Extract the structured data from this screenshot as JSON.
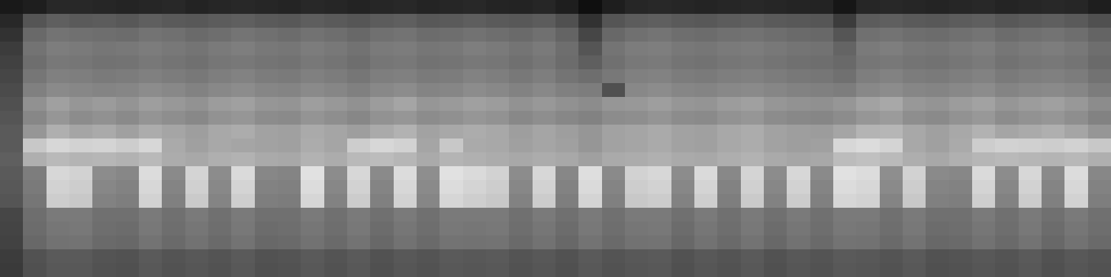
{
  "chart_data": {
    "type": "heatmap",
    "tick_labels": false,
    "xlim": [
      -0.5,
      47.5
    ],
    "ylim": [
      19.5,
      -0.5
    ],
    "zlim": [
      0,
      255
    ],
    "z": [
      [
        25,
        30,
        40,
        40,
        38,
        36,
        38,
        40,
        35,
        38,
        40,
        38,
        36,
        40,
        38,
        35,
        38,
        40,
        36,
        38,
        40,
        36,
        35,
        38,
        30,
        15,
        30,
        38,
        40,
        38,
        36,
        38,
        40,
        38,
        36,
        35,
        22,
        38,
        40,
        38,
        36,
        38,
        40,
        36,
        38,
        40,
        38,
        30
      ],
      [
        40,
        85,
        95,
        90,
        92,
        88,
        95,
        90,
        88,
        92,
        95,
        90,
        88,
        94,
        90,
        86,
        92,
        95,
        88,
        90,
        94,
        90,
        88,
        92,
        80,
        50,
        85,
        92,
        95,
        90,
        88,
        92,
        95,
        90,
        88,
        86,
        60,
        92,
        95,
        90,
        88,
        92,
        95,
        88,
        92,
        95,
        90,
        80
      ],
      [
        50,
        105,
        115,
        112,
        110,
        108,
        115,
        112,
        106,
        110,
        116,
        112,
        108,
        114,
        110,
        104,
        112,
        115,
        108,
        110,
        114,
        110,
        106,
        112,
        100,
        70,
        104,
        112,
        116,
        110,
        108,
        112,
        114,
        110,
        106,
        104,
        85,
        112,
        115,
        110,
        108,
        112,
        116,
        108,
        112,
        115,
        110,
        100
      ],
      [
        60,
        115,
        125,
        122,
        118,
        120,
        124,
        120,
        116,
        122,
        126,
        120,
        118,
        124,
        120,
        114,
        122,
        124,
        118,
        120,
        126,
        122,
        116,
        122,
        110,
        85,
        116,
        124,
        126,
        120,
        118,
        122,
        124,
        120,
        116,
        114,
        100,
        122,
        126,
        120,
        118,
        122,
        126,
        118,
        122,
        125,
        120,
        110
      ],
      [
        65,
        110,
        120,
        118,
        114,
        115,
        120,
        116,
        112,
        118,
        120,
        116,
        114,
        120,
        116,
        110,
        118,
        120,
        114,
        116,
        120,
        118,
        112,
        118,
        108,
        95,
        112,
        120,
        122,
        116,
        114,
        118,
        120,
        116,
        112,
        110,
        105,
        118,
        120,
        116,
        114,
        118,
        122,
        114,
        118,
        120,
        116,
        106
      ],
      [
        70,
        118,
        128,
        126,
        122,
        124,
        128,
        124,
        120,
        126,
        130,
        124,
        122,
        128,
        124,
        118,
        126,
        128,
        122,
        124,
        130,
        126,
        120,
        126,
        116,
        110,
        120,
        128,
        130,
        124,
        122,
        126,
        128,
        124,
        120,
        118,
        112,
        126,
        130,
        124,
        122,
        126,
        130,
        122,
        126,
        128,
        124,
        114
      ],
      [
        75,
        128,
        138,
        135,
        132,
        134,
        140,
        136,
        130,
        136,
        140,
        134,
        132,
        138,
        134,
        128,
        136,
        140,
        132,
        134,
        140,
        136,
        130,
        136,
        128,
        125,
        80,
        136,
        140,
        134,
        132,
        136,
        138,
        134,
        130,
        128,
        125,
        136,
        140,
        134,
        132,
        136,
        140,
        132,
        136,
        138,
        134,
        124
      ],
      [
        80,
        145,
        160,
        150,
        155,
        148,
        158,
        152,
        146,
        156,
        160,
        150,
        148,
        158,
        152,
        145,
        156,
        165,
        150,
        154,
        160,
        156,
        146,
        152,
        145,
        140,
        150,
        152,
        158,
        150,
        148,
        156,
        160,
        150,
        146,
        144,
        150,
        162,
        168,
        152,
        148,
        156,
        162,
        150,
        156,
        160,
        152,
        140
      ],
      [
        85,
        135,
        150,
        140,
        145,
        138,
        148,
        142,
        136,
        146,
        150,
        140,
        138,
        148,
        142,
        135,
        146,
        150,
        140,
        144,
        150,
        146,
        136,
        142,
        135,
        130,
        140,
        142,
        148,
        140,
        138,
        146,
        150,
        140,
        136,
        134,
        140,
        150,
        155,
        142,
        138,
        146,
        152,
        140,
        146,
        150,
        142,
        130
      ],
      [
        90,
        150,
        175,
        165,
        170,
        160,
        172,
        165,
        158,
        168,
        172,
        162,
        160,
        170,
        165,
        158,
        170,
        178,
        162,
        168,
        172,
        168,
        158,
        165,
        158,
        150,
        162,
        165,
        170,
        162,
        160,
        168,
        172,
        162,
        158,
        156,
        165,
        180,
        182,
        168,
        160,
        168,
        178,
        165,
        170,
        175,
        165,
        150
      ],
      [
        90,
        200,
        215,
        210,
        212,
        205,
        215,
        170,
        160,
        168,
        165,
        162,
        160,
        172,
        165,
        205,
        215,
        210,
        165,
        200,
        170,
        168,
        160,
        165,
        160,
        150,
        162,
        165,
        170,
        162,
        160,
        168,
        172,
        162,
        158,
        160,
        215,
        220,
        212,
        168,
        160,
        170,
        205,
        210,
        208,
        205,
        210,
        200
      ],
      [
        95,
        175,
        185,
        180,
        182,
        178,
        185,
        172,
        168,
        175,
        178,
        170,
        168,
        178,
        172,
        185,
        188,
        182,
        170,
        180,
        176,
        172,
        168,
        172,
        168,
        160,
        170,
        172,
        176,
        170,
        168,
        174,
        178,
        170,
        166,
        168,
        188,
        192,
        186,
        174,
        168,
        176,
        182,
        185,
        182,
        180,
        184,
        175
      ],
      [
        90,
        125,
        215,
        210,
        140,
        135,
        220,
        138,
        212,
        140,
        218,
        135,
        132,
        225,
        140,
        215,
        138,
        220,
        142,
        225,
        218,
        210,
        140,
        215,
        135,
        222,
        138,
        210,
        215,
        140,
        218,
        136,
        212,
        140,
        215,
        138,
        225,
        220,
        142,
        210,
        138,
        135,
        218,
        140,
        215,
        138,
        220,
        135
      ],
      [
        88,
        122,
        210,
        205,
        135,
        130,
        215,
        132,
        208,
        136,
        212,
        130,
        128,
        220,
        135,
        210,
        132,
        215,
        138,
        220,
        212,
        205,
        135,
        210,
        130,
        218,
        132,
        205,
        210,
        135,
        212,
        130,
        208,
        135,
        210,
        132,
        220,
        215,
        138,
        205,
        132,
        130,
        212,
        135,
        210,
        132,
        215,
        130
      ],
      [
        85,
        118,
        205,
        200,
        130,
        126,
        210,
        128,
        202,
        132,
        206,
        126,
        124,
        214,
        130,
        204,
        128,
        210,
        134,
        214,
        206,
        200,
        130,
        204,
        126,
        212,
        128,
        200,
        204,
        130,
        206,
        126,
        202,
        130,
        204,
        128,
        214,
        210,
        132,
        200,
        128,
        126,
        206,
        130,
        204,
        128,
        210,
        126
      ],
      [
        70,
        110,
        122,
        122,
        112,
        112,
        122,
        112,
        122,
        112,
        122,
        112,
        112,
        122,
        112,
        122,
        112,
        122,
        112,
        122,
        122,
        122,
        112,
        122,
        112,
        122,
        112,
        122,
        122,
        112,
        122,
        112,
        122,
        112,
        122,
        112,
        122,
        122,
        112,
        122,
        112,
        112,
        122,
        112,
        122,
        112,
        122,
        112
      ],
      [
        68,
        108,
        118,
        120,
        110,
        108,
        120,
        110,
        118,
        110,
        120,
        108,
        110,
        118,
        110,
        120,
        108,
        118,
        110,
        120,
        118,
        120,
        110,
        118,
        108,
        120,
        110,
        118,
        120,
        108,
        118,
        110,
        120,
        108,
        118,
        110,
        120,
        118,
        110,
        120,
        108,
        110,
        118,
        110,
        120,
        108,
        118,
        110
      ],
      [
        66,
        104,
        114,
        115,
        106,
        104,
        115,
        106,
        114,
        106,
        115,
        104,
        106,
        114,
        106,
        115,
        104,
        114,
        106,
        115,
        114,
        115,
        106,
        114,
        104,
        115,
        106,
        114,
        115,
        104,
        114,
        106,
        115,
        104,
        114,
        106,
        115,
        114,
        106,
        115,
        104,
        106,
        114,
        106,
        115,
        104,
        114,
        106
      ],
      [
        60,
        82,
        90,
        90,
        84,
        82,
        90,
        84,
        88,
        84,
        90,
        82,
        84,
        90,
        84,
        90,
        82,
        88,
        84,
        90,
        88,
        90,
        84,
        88,
        82,
        90,
        84,
        88,
        90,
        82,
        88,
        84,
        90,
        82,
        88,
        84,
        90,
        88,
        84,
        90,
        82,
        84,
        88,
        84,
        90,
        82,
        88,
        84
      ],
      [
        58,
        80,
        88,
        88,
        82,
        80,
        88,
        82,
        86,
        82,
        88,
        80,
        82,
        88,
        82,
        88,
        80,
        86,
        82,
        88,
        86,
        88,
        82,
        86,
        80,
        88,
        82,
        86,
        88,
        80,
        86,
        82,
        88,
        80,
        86,
        82,
        88,
        86,
        82,
        88,
        80,
        82,
        86,
        82,
        88,
        80,
        86,
        82
      ]
    ]
  }
}
